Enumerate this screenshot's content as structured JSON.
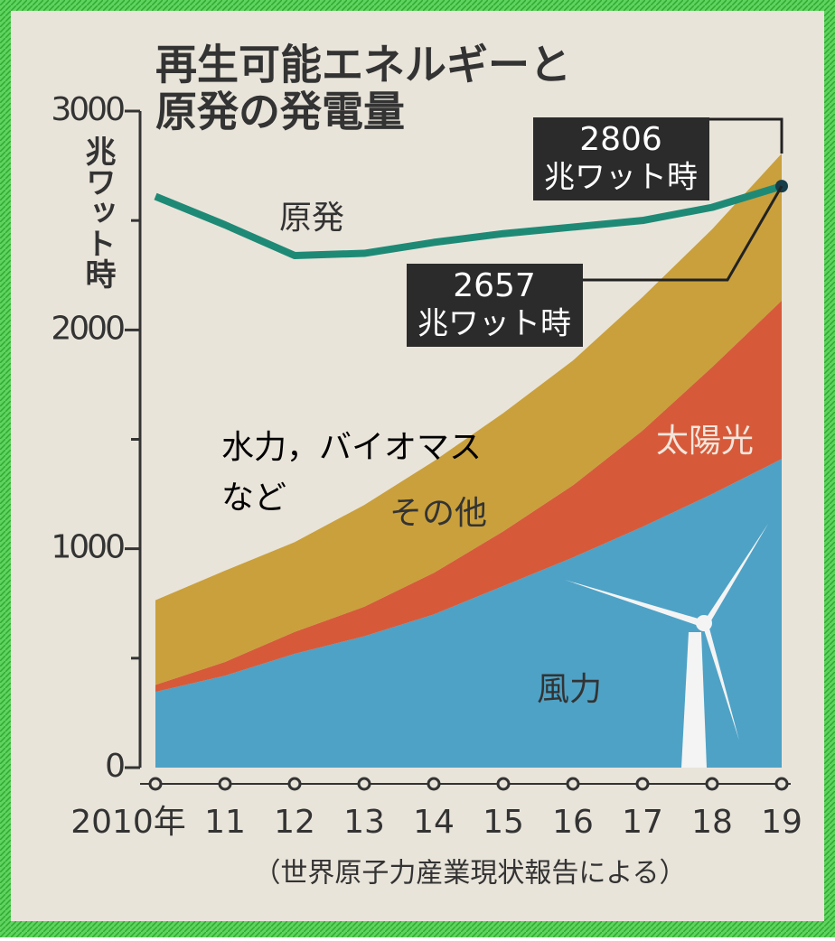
{
  "chart_data": {
    "type": "stacked-area",
    "title": [
      "再生可能エネルギーと",
      "原発の発電量"
    ],
    "y_label": "兆ワット時",
    "categories": [
      "2010年",
      "11",
      "12",
      "13",
      "14",
      "15",
      "16",
      "17",
      "18",
      "19"
    ],
    "series": [
      {
        "name": "風力",
        "color": "#4ea2c6",
        "values": [
          346,
          420,
          520,
          600,
          700,
          830,
          960,
          1100,
          1250,
          1410
        ]
      },
      {
        "name": "太陽光",
        "color": "#d65a3a",
        "values": [
          32,
          63,
          100,
          135,
          190,
          250,
          330,
          440,
          580,
          724
        ]
      },
      {
        "name": "その他",
        "color": "#c9a03c",
        "values": [
          387,
          417,
          410,
          465,
          510,
          540,
          570,
          610,
          630,
          672
        ]
      }
    ],
    "line_series": {
      "name": "原発",
      "color": "#1e8a76",
      "values": [
        2610,
        2480,
        2340,
        2350,
        2400,
        2440,
        2470,
        2500,
        2560,
        2657
      ]
    },
    "ylim": [
      0,
      3000
    ],
    "yticks": [
      0,
      1000,
      2000,
      3000
    ],
    "yminorticks": [
      500,
      1500,
      2500
    ],
    "annotations": [
      {
        "value": 2806,
        "unit": "兆ワット時"
      },
      {
        "value": 2657,
        "unit": "兆ワット時"
      }
    ],
    "note": [
      "水力，バイオマス",
      "など"
    ],
    "source": "（世界原子力産業現状報告による）"
  }
}
